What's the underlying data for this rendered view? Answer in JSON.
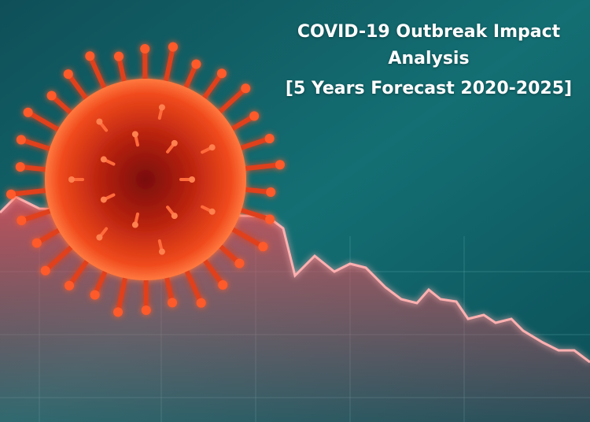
{
  "header": {
    "title": "COVID-19 Outbreak Impact Analysis",
    "subtitle": "[5 Years Forecast 2020-2025]"
  }
}
